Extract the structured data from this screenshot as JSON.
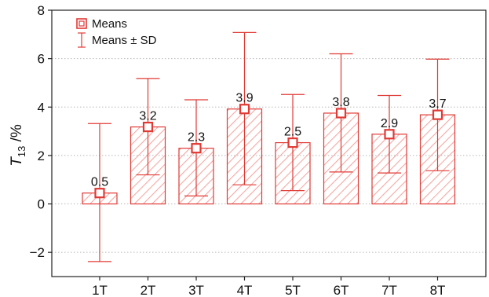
{
  "chart_data": {
    "type": "bar",
    "categories": [
      "1T",
      "2T",
      "3T",
      "4T",
      "5T",
      "6T",
      "7T",
      "8T"
    ],
    "values": [
      0.45,
      3.18,
      2.3,
      3.92,
      2.53,
      3.75,
      2.88,
      3.68
    ],
    "data_labels": [
      "0.5",
      "3.2",
      "2.3",
      "3.9",
      "2.5",
      "3.8",
      "2.9",
      "3.7"
    ],
    "sd_upper": [
      3.32,
      5.18,
      4.3,
      7.08,
      4.52,
      6.2,
      4.48,
      5.98
    ],
    "sd_lower": [
      -2.38,
      1.2,
      0.33,
      0.79,
      0.55,
      1.32,
      1.28,
      1.37
    ],
    "ylim": [
      -3,
      8
    ],
    "yticks": [
      -2,
      0,
      2,
      4,
      6,
      8
    ],
    "ytick_labels": [
      "−2",
      "0",
      "2",
      "4",
      "6",
      "8"
    ],
    "ylabel": {
      "main": "T",
      "sub": "13",
      "unit": " /%"
    },
    "xlabel": "",
    "grid": true,
    "legend_position": "top-left",
    "legend": [
      {
        "symbol": "square-marker",
        "label": "Means"
      },
      {
        "symbol": "error-bar",
        "label": "Means ± SD"
      }
    ],
    "colors": {
      "accent": "#e03a35",
      "hatch": "#f3a9a4",
      "grid": "#b8b8b8",
      "axis": "#222222"
    }
  }
}
